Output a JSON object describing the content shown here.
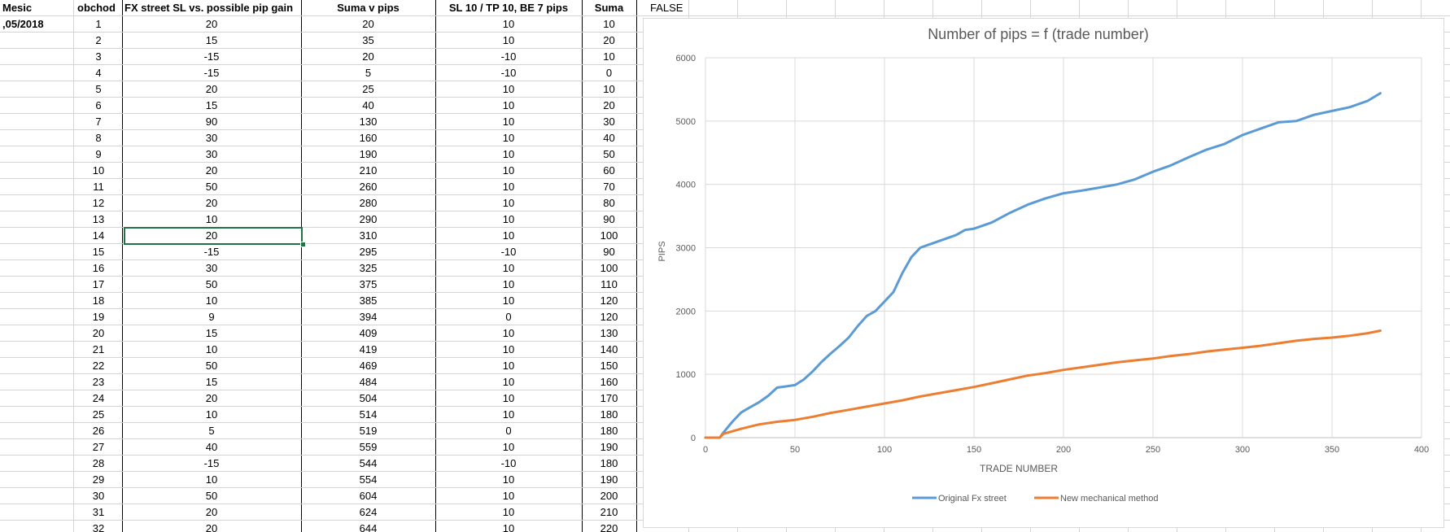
{
  "sheet": {
    "status_cell": "FALSE",
    "headers": {
      "mesic": "Mesic",
      "obchod": "obchod",
      "fx_street": "FX street SL vs. possible pip gain",
      "suma_v_pips": "Suma v pips",
      "sl_tp": "SL 10 / TP 10, BE 7 pips",
      "suma": "Suma"
    },
    "month_value": ",05/2018",
    "rows": [
      {
        "obchod": "1",
        "fx": "20",
        "suma_pips": "20",
        "sl": "10",
        "suma": "10"
      },
      {
        "obchod": "2",
        "fx": "15",
        "suma_pips": "35",
        "sl": "10",
        "suma": "20"
      },
      {
        "obchod": "3",
        "fx": "-15",
        "suma_pips": "20",
        "sl": "-10",
        "suma": "10"
      },
      {
        "obchod": "4",
        "fx": "-15",
        "suma_pips": "5",
        "sl": "-10",
        "suma": "0"
      },
      {
        "obchod": "5",
        "fx": "20",
        "suma_pips": "25",
        "sl": "10",
        "suma": "10"
      },
      {
        "obchod": "6",
        "fx": "15",
        "suma_pips": "40",
        "sl": "10",
        "suma": "20"
      },
      {
        "obchod": "7",
        "fx": "90",
        "suma_pips": "130",
        "sl": "10",
        "suma": "30"
      },
      {
        "obchod": "8",
        "fx": "30",
        "suma_pips": "160",
        "sl": "10",
        "suma": "40"
      },
      {
        "obchod": "9",
        "fx": "30",
        "suma_pips": "190",
        "sl": "10",
        "suma": "50"
      },
      {
        "obchod": "10",
        "fx": "20",
        "suma_pips": "210",
        "sl": "10",
        "suma": "60"
      },
      {
        "obchod": "11",
        "fx": "50",
        "suma_pips": "260",
        "sl": "10",
        "suma": "70"
      },
      {
        "obchod": "12",
        "fx": "20",
        "suma_pips": "280",
        "sl": "10",
        "suma": "80"
      },
      {
        "obchod": "13",
        "fx": "10",
        "suma_pips": "290",
        "sl": "10",
        "suma": "90"
      },
      {
        "obchod": "14",
        "fx": "20",
        "suma_pips": "310",
        "sl": "10",
        "suma": "100"
      },
      {
        "obchod": "15",
        "fx": "-15",
        "suma_pips": "295",
        "sl": "-10",
        "suma": "90"
      },
      {
        "obchod": "16",
        "fx": "30",
        "suma_pips": "325",
        "sl": "10",
        "suma": "100"
      },
      {
        "obchod": "17",
        "fx": "50",
        "suma_pips": "375",
        "sl": "10",
        "suma": "110"
      },
      {
        "obchod": "18",
        "fx": "10",
        "suma_pips": "385",
        "sl": "10",
        "suma": "120"
      },
      {
        "obchod": "19",
        "fx": "9",
        "suma_pips": "394",
        "sl": "0",
        "suma": "120"
      },
      {
        "obchod": "20",
        "fx": "15",
        "suma_pips": "409",
        "sl": "10",
        "suma": "130"
      },
      {
        "obchod": "21",
        "fx": "10",
        "suma_pips": "419",
        "sl": "10",
        "suma": "140"
      },
      {
        "obchod": "22",
        "fx": "50",
        "suma_pips": "469",
        "sl": "10",
        "suma": "150"
      },
      {
        "obchod": "23",
        "fx": "15",
        "suma_pips": "484",
        "sl": "10",
        "suma": "160"
      },
      {
        "obchod": "24",
        "fx": "20",
        "suma_pips": "504",
        "sl": "10",
        "suma": "170"
      },
      {
        "obchod": "25",
        "fx": "10",
        "suma_pips": "514",
        "sl": "10",
        "suma": "180"
      },
      {
        "obchod": "26",
        "fx": "5",
        "suma_pips": "519",
        "sl": "0",
        "suma": "180"
      },
      {
        "obchod": "27",
        "fx": "40",
        "suma_pips": "559",
        "sl": "10",
        "suma": "190"
      },
      {
        "obchod": "28",
        "fx": "-15",
        "suma_pips": "544",
        "sl": "-10",
        "suma": "180"
      },
      {
        "obchod": "29",
        "fx": "10",
        "suma_pips": "554",
        "sl": "10",
        "suma": "190"
      },
      {
        "obchod": "30",
        "fx": "50",
        "suma_pips": "604",
        "sl": "10",
        "suma": "200"
      },
      {
        "obchod": "31",
        "fx": "20",
        "suma_pips": "624",
        "sl": "10",
        "suma": "210"
      },
      {
        "obchod": "32",
        "fx": "20",
        "suma_pips": "644",
        "sl": "10",
        "suma": "220"
      }
    ],
    "selected_row": 14,
    "selection_color": "#217346"
  },
  "chart_data": {
    "type": "line",
    "title": "Number of pips = f (trade number)",
    "xlabel": "TRADE NUMBER",
    "ylabel": "PIPS",
    "xlim": [
      0,
      400
    ],
    "ylim": [
      0,
      6000
    ],
    "xticks": [
      "0",
      "50",
      "100",
      "150",
      "200",
      "250",
      "300",
      "350",
      "400"
    ],
    "yticks": [
      "0",
      "1000",
      "2000",
      "3000",
      "4000",
      "5000",
      "6000"
    ],
    "grid": true,
    "legend": "bottom",
    "series": [
      {
        "name": "Original Fx street",
        "color": "#5b9bd5",
        "x": [
          0,
          8,
          10,
          15,
          20,
          25,
          30,
          35,
          40,
          45,
          50,
          55,
          60,
          65,
          70,
          75,
          80,
          85,
          90,
          95,
          100,
          105,
          110,
          115,
          120,
          125,
          130,
          135,
          140,
          145,
          150,
          155,
          160,
          170,
          180,
          190,
          200,
          210,
          220,
          230,
          240,
          250,
          260,
          270,
          280,
          290,
          300,
          310,
          320,
          330,
          340,
          350,
          360,
          370,
          377
        ],
        "y": [
          0,
          0,
          80,
          250,
          400,
          480,
          560,
          660,
          790,
          810,
          830,
          920,
          1050,
          1200,
          1330,
          1450,
          1580,
          1760,
          1920,
          2000,
          2150,
          2300,
          2600,
          2850,
          3000,
          3050,
          3100,
          3150,
          3200,
          3280,
          3300,
          3350,
          3400,
          3550,
          3680,
          3780,
          3860,
          3900,
          3950,
          4000,
          4080,
          4200,
          4300,
          4430,
          4550,
          4640,
          4780,
          4880,
          4980,
          5000,
          5100,
          5160,
          5220,
          5320,
          5440
        ]
      },
      {
        "name": "New mechanical method",
        "color": "#ed7d31",
        "x": [
          0,
          8,
          10,
          20,
          30,
          40,
          50,
          60,
          70,
          80,
          90,
          100,
          110,
          120,
          130,
          140,
          150,
          160,
          170,
          180,
          190,
          200,
          210,
          220,
          230,
          240,
          250,
          260,
          270,
          280,
          290,
          300,
          310,
          320,
          330,
          340,
          350,
          360,
          370,
          377
        ],
        "y": [
          0,
          0,
          60,
          140,
          210,
          250,
          280,
          330,
          390,
          440,
          490,
          540,
          590,
          650,
          700,
          750,
          800,
          860,
          920,
          980,
          1020,
          1070,
          1110,
          1150,
          1190,
          1220,
          1250,
          1290,
          1320,
          1360,
          1390,
          1420,
          1450,
          1490,
          1530,
          1560,
          1580,
          1610,
          1650,
          1690
        ]
      }
    ]
  }
}
